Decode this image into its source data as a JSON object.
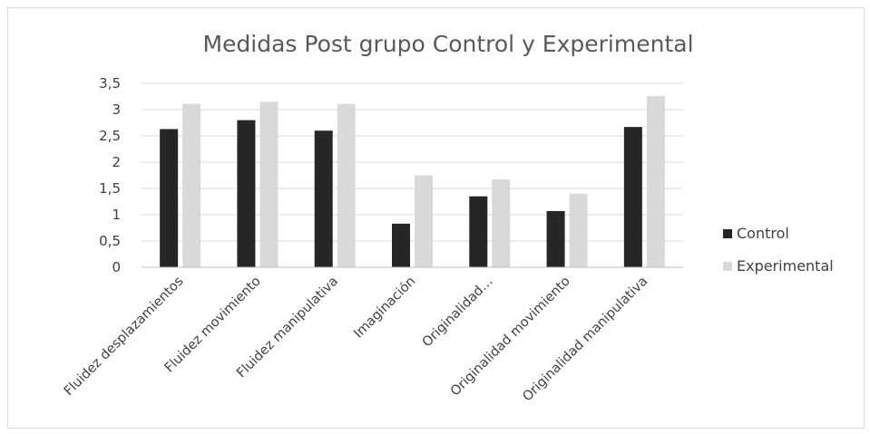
{
  "chart_data": {
    "type": "bar",
    "title": "Medidas Post grupo Control y Experimental",
    "categories": [
      "Fluidez desplazamientos",
      "Fluidez movimiento",
      "Fluidez manipulativa",
      "Imaginación",
      "Originalidad…",
      "Originalidad movimiento",
      "Originalidad manipulativa"
    ],
    "series": [
      {
        "name": "Control",
        "color": "#262626",
        "values": [
          2.63,
          2.8,
          2.6,
          0.83,
          1.35,
          1.07,
          2.67
        ]
      },
      {
        "name": "Experimental",
        "color": "#d9d9d9",
        "values": [
          3.11,
          3.15,
          3.11,
          1.75,
          1.67,
          1.4,
          3.26
        ]
      }
    ],
    "y_ticks": [
      "0",
      "0,5",
      "1",
      "1,5",
      "2",
      "2,5",
      "3",
      "3,5"
    ],
    "ylim": [
      0,
      3.5
    ],
    "grid": true,
    "legend_position": "right"
  }
}
